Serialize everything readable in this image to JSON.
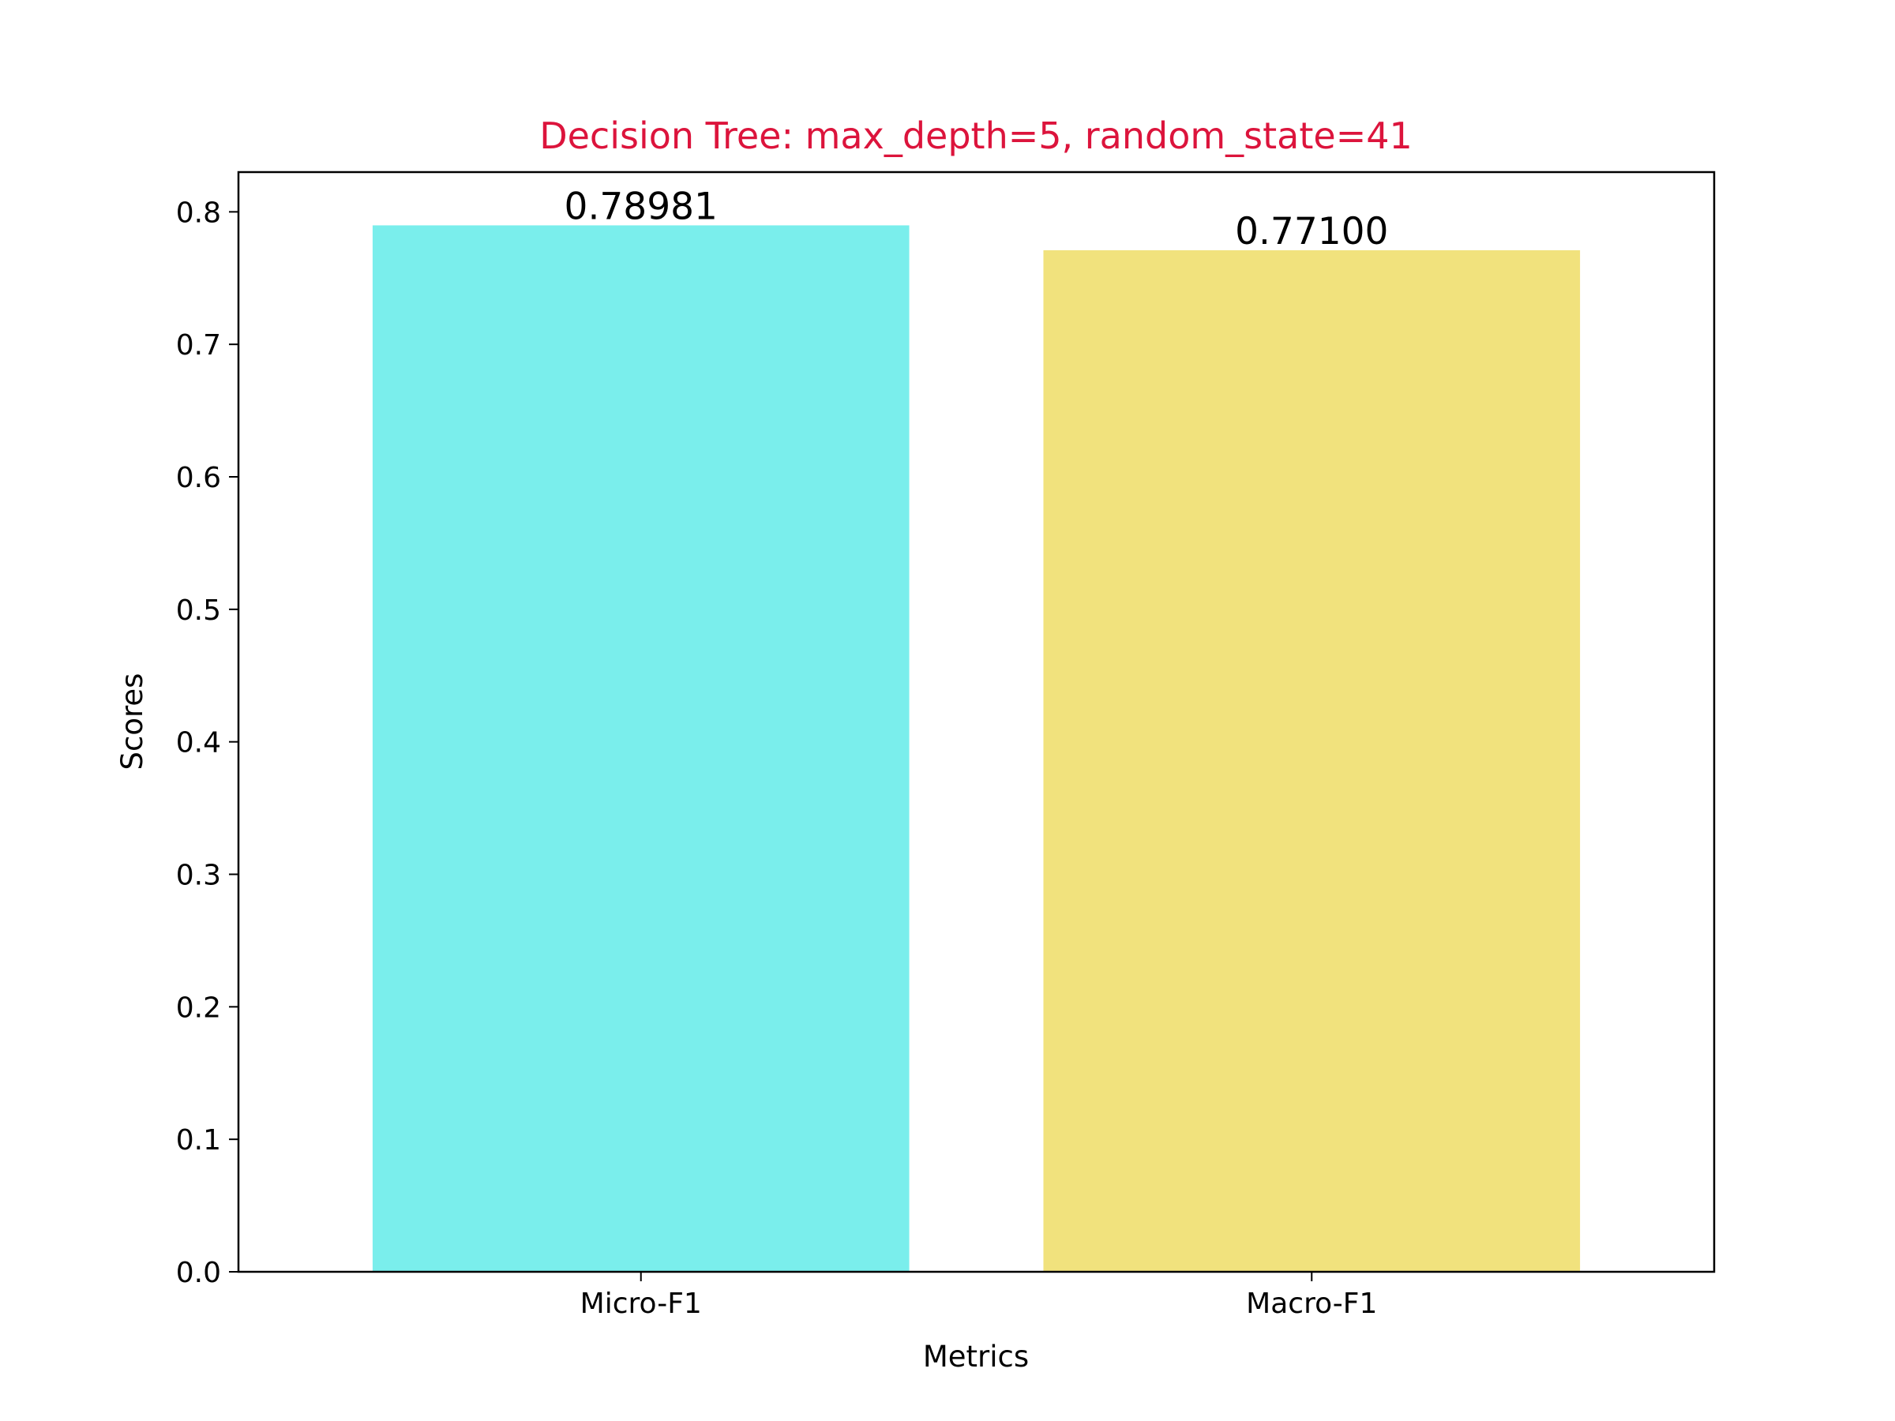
{
  "chart_data": {
    "type": "bar",
    "title": "Decision Tree: max_depth=5, random_state=41",
    "xlabel": "Metrics",
    "ylabel": "Scores",
    "categories": [
      "Micro-F1",
      "Macro-F1"
    ],
    "values": [
      0.78981,
      0.771
    ],
    "value_labels": [
      "0.78981",
      "0.77100"
    ],
    "ylim": [
      0,
      0.83
    ],
    "yticks": [
      0.0,
      0.1,
      0.2,
      0.3,
      0.4,
      0.5,
      0.6,
      0.7,
      0.8
    ],
    "ytick_labels": [
      "0.0",
      "0.1",
      "0.2",
      "0.3",
      "0.4",
      "0.5",
      "0.6",
      "0.7",
      "0.8"
    ],
    "grid": false,
    "colors": {
      "bars": [
        "#7aeeec",
        "#f1e27d"
      ],
      "title": "#dc143c",
      "axes": "#000000"
    }
  }
}
